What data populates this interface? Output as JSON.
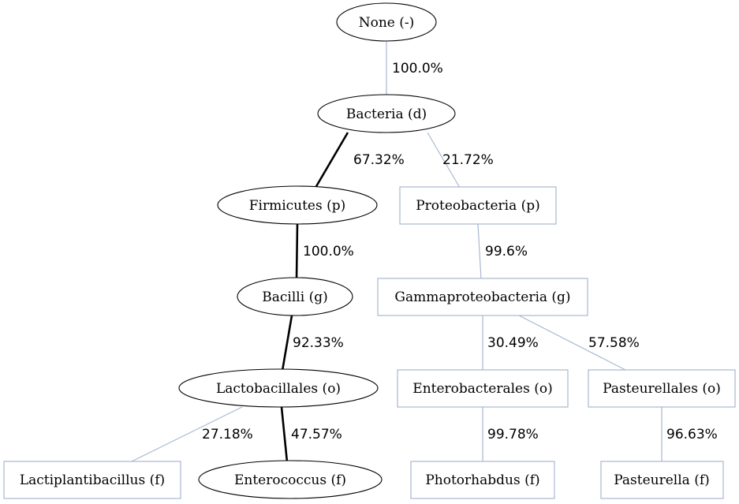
{
  "diagram": {
    "nodes": {
      "none": {
        "label": "None (-)",
        "shape": "ellipse"
      },
      "bacteria": {
        "label": "Bacteria (d)",
        "shape": "ellipse"
      },
      "firmicutes": {
        "label": "Firmicutes (p)",
        "shape": "ellipse"
      },
      "proteobacteria": {
        "label": "Proteobacteria (p)",
        "shape": "box"
      },
      "bacilli": {
        "label": "Bacilli (g)",
        "shape": "ellipse"
      },
      "gammaproteobacteria": {
        "label": "Gammaproteobacteria (g)",
        "shape": "box"
      },
      "lactobacillales": {
        "label": "Lactobacillales (o)",
        "shape": "ellipse"
      },
      "enterobacterales": {
        "label": "Enterobacterales (o)",
        "shape": "box"
      },
      "pasteurellales": {
        "label": "Pasteurellales (o)",
        "shape": "box"
      },
      "lactiplantibacillus": {
        "label": "Lactiplantibacillus (f)",
        "shape": "box"
      },
      "enterococcus": {
        "label": "Enterococcus (f)",
        "shape": "ellipse"
      },
      "photorhabdus": {
        "label": "Photorhabdus (f)",
        "shape": "box"
      },
      "pasteurella": {
        "label": "Pasteurella (f)",
        "shape": "box"
      }
    },
    "edges": {
      "none_bacteria": {
        "label": "100.0%",
        "style": "weak"
      },
      "bacteria_firmicutes": {
        "label": "67.32%",
        "style": "strong"
      },
      "bacteria_proteobacteria": {
        "label": "21.72%",
        "style": "weak"
      },
      "firmicutes_bacilli": {
        "label": "100.0%",
        "style": "strong"
      },
      "proteobacteria_gammaproteobacteria": {
        "label": "99.6%",
        "style": "weak"
      },
      "bacilli_lactobacillales": {
        "label": "92.33%",
        "style": "strong"
      },
      "gammaproteobacteria_enterobacterales": {
        "label": "30.49%",
        "style": "weak"
      },
      "gammaproteobacteria_pasteurellales": {
        "label": "57.58%",
        "style": "weak"
      },
      "lactobacillales_lactiplantibacillus": {
        "label": "27.18%",
        "style": "weak"
      },
      "lactobacillales_enterococcus": {
        "label": "47.57%",
        "style": "strong"
      },
      "enterobacterales_photorhabdus": {
        "label": "99.78%",
        "style": "weak"
      },
      "pasteurellales_pasteurella": {
        "label": "96.63%",
        "style": "weak"
      }
    },
    "colors": {
      "strong_edge": "#000000",
      "weak_edge": "#a8b8d0",
      "box_border": "#a8b8d0",
      "ellipse_border": "#000000"
    }
  }
}
